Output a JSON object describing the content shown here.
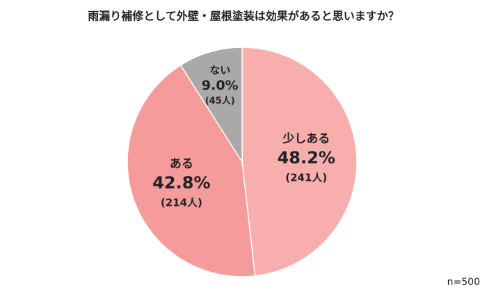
{
  "chart_data": {
    "type": "pie",
    "title": "雨漏り補修として外壁・屋根塗装は効果があると思いますか？",
    "categories": [
      "少しある",
      "ある",
      "ない"
    ],
    "values": [
      48.2,
      42.8,
      9.0
    ],
    "value_labels": [
      "48.2%",
      "42.8%",
      "9.0%"
    ],
    "count_labels": [
      "(241人)",
      "(214人)",
      "(45人)"
    ],
    "colors": [
      "#f9aeae",
      "#f59b9c",
      "#aba8a8"
    ],
    "note": "n=500"
  }
}
